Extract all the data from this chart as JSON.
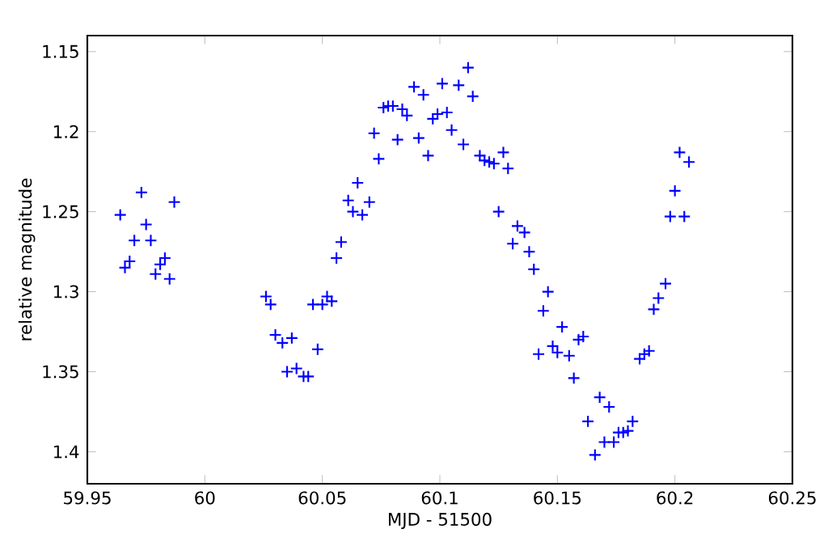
{
  "chart_data": {
    "type": "scatter",
    "xlabel": "MJD - 51500",
    "ylabel": "relative magnitude",
    "xlim": [
      59.95,
      60.25
    ],
    "xticks": [
      59.95,
      60,
      60.05,
      60.1,
      60.15,
      60.2,
      60.25
    ],
    "ylim": [
      1.42,
      1.14
    ],
    "yticks": [
      1.15,
      1.2,
      1.25,
      1.3,
      1.35,
      1.4
    ],
    "marker": "cross",
    "series": [
      {
        "color": "#0000ff",
        "x": [
          59.964,
          59.966,
          59.968,
          59.97,
          59.973,
          59.975,
          59.977,
          59.979,
          59.981,
          59.983,
          59.985,
          59.987,
          60.026,
          60.028,
          60.03,
          60.033,
          60.035,
          60.037,
          60.039,
          60.042,
          60.044,
          60.046,
          60.048,
          60.05,
          60.052,
          60.054,
          60.056,
          60.058,
          60.061,
          60.063,
          60.065,
          60.067,
          60.07,
          60.072,
          60.074,
          60.076,
          60.078,
          60.08,
          60.082,
          60.084,
          60.086,
          60.089,
          60.091,
          60.093,
          60.095,
          60.097,
          60.099,
          60.101,
          60.103,
          60.105,
          60.108,
          60.11,
          60.112,
          60.114,
          60.117,
          60.119,
          60.121,
          60.123,
          60.125,
          60.127,
          60.129,
          60.131,
          60.133,
          60.136,
          60.138,
          60.14,
          60.142,
          60.144,
          60.146,
          60.148,
          60.15,
          60.152,
          60.155,
          60.157,
          60.159,
          60.161,
          60.163,
          60.166,
          60.168,
          60.17,
          60.172,
          60.174,
          60.176,
          60.178,
          60.18,
          60.182,
          60.185,
          60.187,
          60.189,
          60.191,
          60.193,
          60.196,
          60.198,
          60.2,
          60.202,
          60.204,
          60.206
        ],
        "values": [
          1.252,
          1.285,
          1.281,
          1.268,
          1.238,
          1.258,
          1.268,
          1.289,
          1.283,
          1.279,
          1.292,
          1.244,
          1.303,
          1.308,
          1.327,
          1.332,
          1.35,
          1.329,
          1.348,
          1.353,
          1.353,
          1.308,
          1.336,
          1.308,
          1.303,
          1.306,
          1.279,
          1.269,
          1.243,
          1.25,
          1.232,
          1.252,
          1.244,
          1.201,
          1.217,
          1.185,
          1.184,
          1.184,
          1.205,
          1.186,
          1.19,
          1.172,
          1.204,
          1.177,
          1.215,
          1.192,
          1.189,
          1.17,
          1.188,
          1.199,
          1.171,
          1.208,
          1.16,
          1.178,
          1.215,
          1.218,
          1.219,
          1.22,
          1.25,
          1.213,
          1.223,
          1.27,
          1.259,
          1.263,
          1.275,
          1.286,
          1.339,
          1.312,
          1.3,
          1.334,
          1.338,
          1.322,
          1.34,
          1.354,
          1.33,
          1.328,
          1.381,
          1.402,
          1.366,
          1.394,
          1.372,
          1.394,
          1.388,
          1.388,
          1.387,
          1.381,
          1.342,
          1.339,
          1.337,
          1.311,
          1.304,
          1.295,
          1.253,
          1.237,
          1.213,
          1.253,
          1.219
        ]
      }
    ]
  }
}
